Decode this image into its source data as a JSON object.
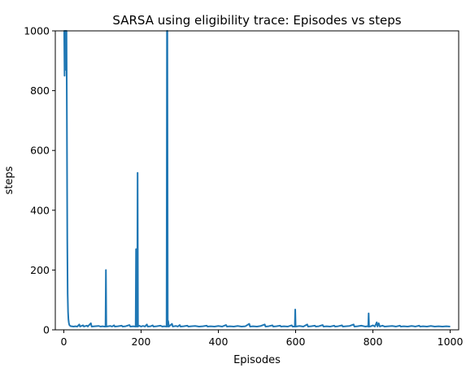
{
  "chart_data": {
    "type": "line",
    "title": "SARSA using eligibility trace: Episodes vs steps",
    "xlabel": "Episodes",
    "ylabel": "steps",
    "xlim": [
      -22,
      1022
    ],
    "ylim": [
      0,
      1000
    ],
    "xticks": [
      0,
      200,
      400,
      600,
      800,
      1000
    ],
    "yticks": [
      0,
      200,
      400,
      600,
      800,
      1000
    ],
    "grid": false,
    "line_color": "#1f77b4",
    "baseline": 11,
    "series": [
      {
        "points": [
          [
            0,
            1000
          ],
          [
            1,
            1000
          ],
          [
            2,
            850
          ],
          [
            3,
            1000
          ],
          [
            4,
            870
          ],
          [
            5,
            1000
          ],
          [
            6,
            960
          ],
          [
            7,
            1000
          ],
          [
            8,
            700
          ],
          [
            9,
            300
          ],
          [
            10,
            120
          ],
          [
            11,
            60
          ],
          [
            12,
            35
          ],
          [
            13,
            24
          ],
          [
            14,
            18
          ],
          [
            15,
            15
          ],
          [
            16,
            14
          ],
          [
            17,
            13
          ],
          [
            18,
            12
          ],
          [
            20,
            12
          ],
          [
            25,
            11
          ],
          [
            30,
            12
          ],
          [
            35,
            11
          ],
          [
            40,
            18
          ],
          [
            42,
            11
          ],
          [
            50,
            15
          ],
          [
            52,
            11
          ],
          [
            60,
            14
          ],
          [
            62,
            11
          ],
          [
            70,
            22
          ],
          [
            72,
            11
          ],
          [
            80,
            12
          ],
          [
            90,
            13
          ],
          [
            95,
            11
          ],
          [
            100,
            12
          ],
          [
            105,
            11
          ],
          [
            108,
            11
          ],
          [
            109,
            200
          ],
          [
            110,
            11
          ],
          [
            115,
            12
          ],
          [
            120,
            13
          ],
          [
            125,
            11
          ],
          [
            130,
            15
          ],
          [
            132,
            11
          ],
          [
            140,
            12
          ],
          [
            150,
            14
          ],
          [
            152,
            11
          ],
          [
            160,
            12
          ],
          [
            170,
            16
          ],
          [
            172,
            11
          ],
          [
            180,
            12
          ],
          [
            186,
            11
          ],
          [
            187,
            270
          ],
          [
            188,
            11
          ],
          [
            189,
            12
          ],
          [
            190,
            11
          ],
          [
            191,
            525
          ],
          [
            192,
            11
          ],
          [
            195,
            14
          ],
          [
            200,
            11
          ],
          [
            205,
            13
          ],
          [
            210,
            11
          ],
          [
            215,
            18
          ],
          [
            217,
            11
          ],
          [
            225,
            12
          ],
          [
            230,
            15
          ],
          [
            232,
            11
          ],
          [
            240,
            12
          ],
          [
            250,
            14
          ],
          [
            255,
            11
          ],
          [
            260,
            12
          ],
          [
            266,
            11
          ],
          [
            267,
            1000
          ],
          [
            268,
            1000
          ],
          [
            269,
            11
          ],
          [
            270,
            30
          ],
          [
            272,
            11
          ],
          [
            280,
            20
          ],
          [
            282,
            11
          ],
          [
            290,
            13
          ],
          [
            295,
            11
          ],
          [
            300,
            16
          ],
          [
            302,
            11
          ],
          [
            310,
            12
          ],
          [
            320,
            14
          ],
          [
            322,
            11
          ],
          [
            330,
            12
          ],
          [
            340,
            13
          ],
          [
            350,
            11
          ],
          [
            360,
            12
          ],
          [
            370,
            14
          ],
          [
            372,
            11
          ],
          [
            380,
            12
          ],
          [
            390,
            11
          ],
          [
            400,
            13
          ],
          [
            410,
            11
          ],
          [
            420,
            16
          ],
          [
            422,
            11
          ],
          [
            430,
            12
          ],
          [
            440,
            11
          ],
          [
            450,
            13
          ],
          [
            460,
            11
          ],
          [
            470,
            12
          ],
          [
            480,
            20
          ],
          [
            482,
            11
          ],
          [
            490,
            12
          ],
          [
            500,
            11
          ],
          [
            510,
            13
          ],
          [
            520,
            18
          ],
          [
            522,
            11
          ],
          [
            530,
            12
          ],
          [
            540,
            15
          ],
          [
            542,
            11
          ],
          [
            550,
            12
          ],
          [
            560,
            14
          ],
          [
            562,
            11
          ],
          [
            570,
            12
          ],
          [
            580,
            11
          ],
          [
            590,
            15
          ],
          [
            592,
            11
          ],
          [
            598,
            11
          ],
          [
            599,
            68
          ],
          [
            600,
            11
          ],
          [
            610,
            13
          ],
          [
            620,
            11
          ],
          [
            630,
            18
          ],
          [
            632,
            11
          ],
          [
            640,
            12
          ],
          [
            650,
            14
          ],
          [
            652,
            11
          ],
          [
            660,
            12
          ],
          [
            670,
            16
          ],
          [
            672,
            11
          ],
          [
            680,
            12
          ],
          [
            690,
            11
          ],
          [
            700,
            14
          ],
          [
            702,
            11
          ],
          [
            710,
            12
          ],
          [
            720,
            15
          ],
          [
            722,
            11
          ],
          [
            730,
            12
          ],
          [
            740,
            13
          ],
          [
            750,
            18
          ],
          [
            752,
            11
          ],
          [
            760,
            12
          ],
          [
            770,
            14
          ],
          [
            780,
            11
          ],
          [
            785,
            12
          ],
          [
            788,
            11
          ],
          [
            789,
            55
          ],
          [
            790,
            11
          ],
          [
            795,
            12
          ],
          [
            800,
            15
          ],
          [
            805,
            11
          ],
          [
            810,
            25
          ],
          [
            812,
            11
          ],
          [
            815,
            22
          ],
          [
            818,
            11
          ],
          [
            825,
            14
          ],
          [
            830,
            11
          ],
          [
            840,
            12
          ],
          [
            850,
            13
          ],
          [
            860,
            11
          ],
          [
            870,
            14
          ],
          [
            872,
            11
          ],
          [
            880,
            12
          ],
          [
            890,
            11
          ],
          [
            900,
            13
          ],
          [
            910,
            11
          ],
          [
            920,
            14
          ],
          [
            922,
            11
          ],
          [
            930,
            12
          ],
          [
            940,
            11
          ],
          [
            950,
            13
          ],
          [
            960,
            11
          ],
          [
            970,
            12
          ],
          [
            980,
            11
          ],
          [
            990,
            12
          ],
          [
            1000,
            11
          ]
        ]
      }
    ]
  }
}
